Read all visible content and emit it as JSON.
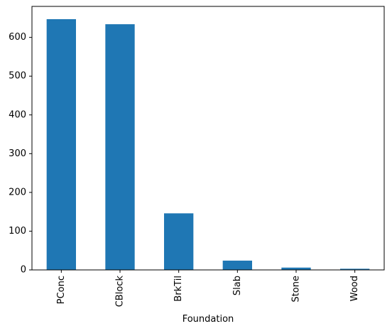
{
  "chart_data": {
    "type": "bar",
    "categories": [
      "PConc",
      "CBlock",
      "BrkTil",
      "Slab",
      "Stone",
      "Wood"
    ],
    "values": [
      647,
      634,
      146,
      24,
      6,
      3
    ],
    "title": "",
    "xlabel": "Foundation",
    "ylabel": "",
    "ylim": [
      0,
      680
    ],
    "yticks": [
      0,
      100,
      200,
      300,
      400,
      500,
      600
    ],
    "grid": false,
    "legend": "none",
    "colors": {
      "bar": "#1f77b4",
      "axes": "#000000",
      "background": "#ffffff"
    }
  }
}
